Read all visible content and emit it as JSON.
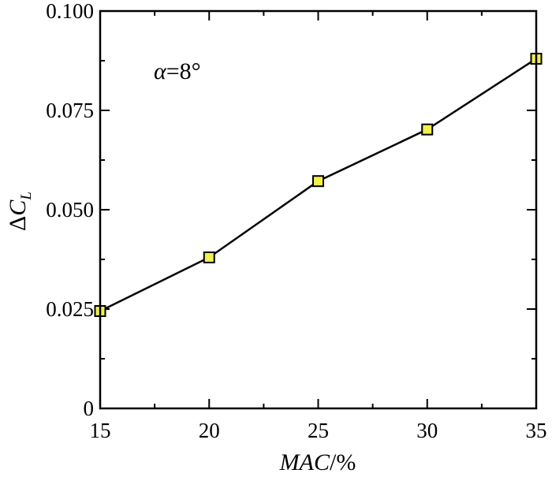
{
  "chart_data": {
    "type": "line",
    "x": [
      15,
      20,
      25,
      30,
      35
    ],
    "series": [
      {
        "values": [
          0.0245,
          0.038,
          0.0572,
          0.0702,
          0.088
        ]
      }
    ],
    "xlim": [
      15,
      35
    ],
    "ylim": [
      0,
      0.1
    ],
    "x_ticks": [
      15,
      20,
      25,
      30,
      35
    ],
    "x_tick_labels": [
      "15",
      "20",
      "25",
      "30",
      "35"
    ],
    "y_ticks": [
      0,
      0.025,
      0.05,
      0.075,
      0.1
    ],
    "y_tick_labels": [
      "0",
      "0.025",
      "0.050",
      "0.075",
      "0.100"
    ],
    "xlabel": {
      "main": "MAC",
      "suffix": "/%"
    },
    "ylabel": {
      "delta": "Δ",
      "main": "C",
      "sub": "L"
    },
    "annotation": {
      "symbol": "α",
      "text": "=8°"
    },
    "grid": false,
    "legend": "none",
    "colors": {
      "marker_fill": "#f2ef4f",
      "marker_stroke": "#000000",
      "line": "#000000"
    }
  }
}
